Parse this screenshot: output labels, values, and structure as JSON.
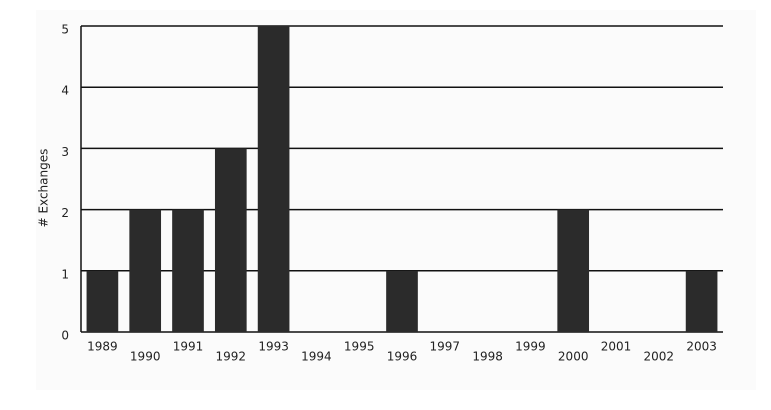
{
  "chart_data": {
    "type": "bar",
    "y_label": "# Exchanges",
    "categories": [
      "1989",
      "1990",
      "1991",
      "1992",
      "1993",
      "1994",
      "1995",
      "1996",
      "1997",
      "1998",
      "1999",
      "2000",
      "2001",
      "2002",
      "2003"
    ],
    "values": [
      1,
      2,
      2,
      3,
      5,
      0,
      0,
      1,
      0,
      0,
      0,
      2,
      0,
      0,
      1
    ],
    "color": "#2b2b2b",
    "ylim": [
      0,
      5
    ],
    "yticks": [
      0,
      1,
      2,
      3,
      4,
      5
    ],
    "grid": true
  }
}
